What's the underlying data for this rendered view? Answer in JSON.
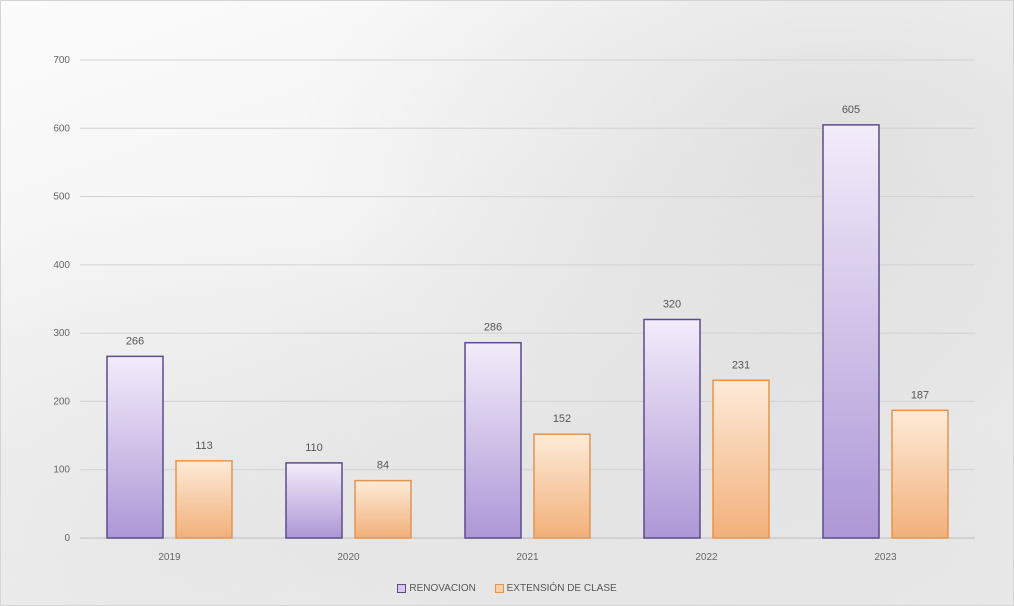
{
  "chart_data": {
    "type": "bar",
    "categories": [
      "2019",
      "2020",
      "2021",
      "2022",
      "2023"
    ],
    "series": [
      {
        "name": "RENOVACION",
        "values": [
          266,
          110,
          286,
          320,
          605
        ],
        "color": "#d9c6ec",
        "stroke": "#5a4d8a",
        "data_labels": [
          "266",
          "110",
          "286",
          "320",
          "605"
        ]
      },
      {
        "name": "EXTENSIÓN DE CLASE",
        "values": [
          113,
          84,
          152,
          231,
          187
        ],
        "color": "#f7cfa8",
        "stroke": "#e3954f",
        "data_labels": [
          "113",
          "84",
          "152",
          "231",
          "187"
        ]
      }
    ],
    "ylim": [
      0,
      700
    ],
    "yticks": [
      0,
      100,
      200,
      300,
      400,
      500,
      600,
      700
    ],
    "ytick_labels": [
      "0",
      "100",
      "200",
      "300",
      "400",
      "500",
      "600",
      "700"
    ],
    "grid": true,
    "legend_position": "bottom-center",
    "title": "",
    "xlabel": "",
    "ylabel": ""
  }
}
